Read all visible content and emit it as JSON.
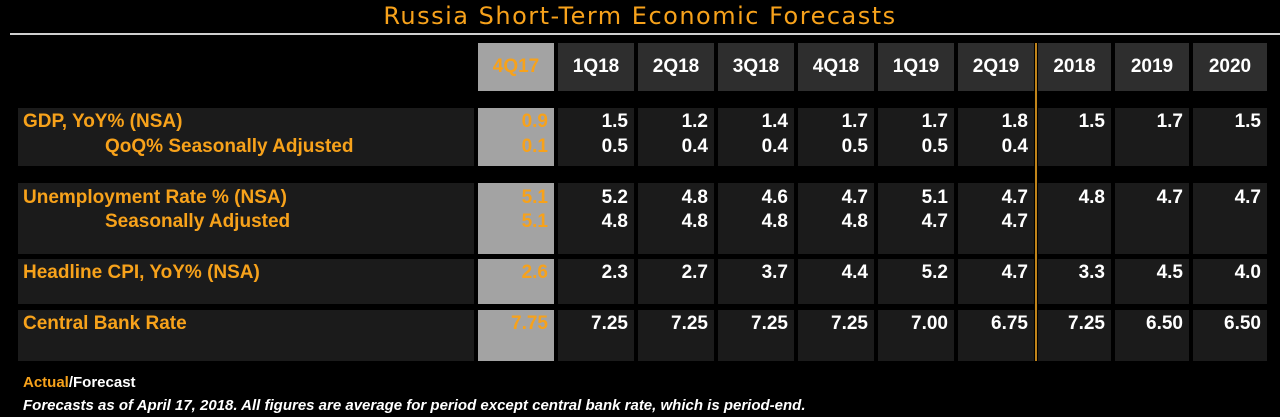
{
  "title": "Russia Short-Term Economic Forecasts",
  "legend": {
    "actual": "Actual",
    "separator": "/",
    "forecast": "Forecast"
  },
  "footnote": "Forecasts as of April 17, 2018. All figures are average for period except central bank rate, which is period-end.",
  "colors": {
    "accent": "#f7a21b",
    "background": "#000000",
    "actual_column_bg": "#a3a3a3",
    "forecast_text": "#ffffff"
  },
  "chart_data": {
    "type": "table",
    "columns": [
      "4Q17",
      "1Q18",
      "2Q18",
      "3Q18",
      "4Q18",
      "1Q19",
      "2Q19",
      "2018",
      "2019",
      "2020"
    ],
    "actual_columns": [
      "4Q17"
    ],
    "rows": [
      {
        "label": "GDP, YoY% (NSA)",
        "values": [
          "0.9",
          "1.5",
          "1.2",
          "1.4",
          "1.7",
          "1.7",
          "1.8",
          "1.5",
          "1.7",
          "1.5"
        ]
      },
      {
        "label": "QoQ% Seasonally Adjusted",
        "values": [
          "0.1",
          "0.5",
          "0.4",
          "0.4",
          "0.5",
          "0.5",
          "0.4",
          "",
          "",
          ""
        ]
      },
      {
        "label": "Unemployment Rate % (NSA)",
        "values": [
          "5.1",
          "5.2",
          "4.8",
          "4.6",
          "4.7",
          "5.1",
          "4.7",
          "4.8",
          "4.7",
          "4.7"
        ]
      },
      {
        "label": "Seasonally Adjusted",
        "values": [
          "5.1",
          "4.8",
          "4.8",
          "4.8",
          "4.8",
          "4.7",
          "4.7",
          "",
          "",
          ""
        ]
      },
      {
        "label": "Headline CPI, YoY% (NSA)",
        "values": [
          "2.6",
          "2.3",
          "2.7",
          "3.7",
          "4.4",
          "5.2",
          "4.7",
          "3.3",
          "4.5",
          "4.0"
        ]
      },
      {
        "label": "Central Bank Rate",
        "values": [
          "7.75",
          "7.25",
          "7.25",
          "7.25",
          "7.25",
          "7.00",
          "6.75",
          "7.25",
          "6.50",
          "6.50"
        ]
      }
    ]
  }
}
